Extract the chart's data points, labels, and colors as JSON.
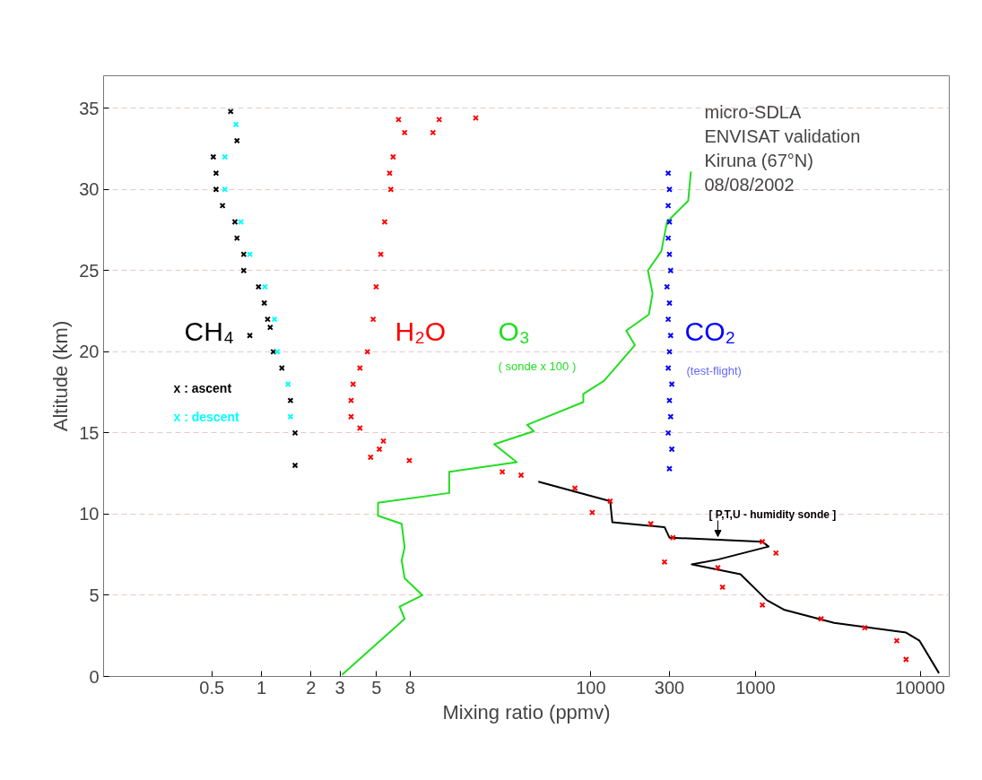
{
  "chart_data": {
    "type": "scatter",
    "xlabel": "Mixing ratio (ppmv)",
    "ylabel": "Altitude (km)",
    "log": "x",
    "xlim": [
      0.11,
      15000
    ],
    "ylim": [
      0,
      37
    ],
    "xticks": [
      0.5,
      1,
      2,
      3,
      5,
      8,
      100,
      300,
      1000,
      10000
    ],
    "yticks": [
      0,
      5,
      10,
      15,
      20,
      25,
      30,
      35
    ],
    "grid": "y",
    "marker": "cross",
    "series": [
      {
        "name": "x : ascent",
        "color": "#000000",
        "x": [
          1.6,
          1.6,
          1.5,
          1.33,
          1.18,
          0.85,
          1.13,
          1.09,
          1.04,
          0.96,
          0.78,
          0.78,
          0.71,
          0.69,
          0.58,
          0.53,
          0.53,
          0.51,
          0.71,
          0.65
        ],
        "values": [
          13,
          15,
          17,
          19,
          20,
          21,
          21.5,
          22,
          23,
          24,
          25,
          26,
          27,
          28,
          29,
          30,
          31,
          32,
          33,
          34.8
        ]
      },
      {
        "name": "x : descent",
        "color": "#00ffff",
        "x": [
          1.5,
          1.45,
          1.25,
          1.2,
          1.05,
          0.85,
          0.75,
          0.6,
          0.6,
          0.7
        ],
        "values": [
          16,
          18,
          20,
          22,
          24,
          26,
          28,
          30,
          32,
          34
        ]
      },
      {
        "name": "H₂O",
        "color": "#ff0000",
        "x": [
          6.8,
          12,
          20,
          7.4,
          11,
          6.3,
          6.0,
          6.1,
          5.6,
          5.3,
          4.97,
          4.77,
          4.4,
          3.96,
          3.6,
          3.5,
          3.5,
          3.96,
          5.5,
          5.2,
          4.6,
          7.9,
          29,
          37.7,
          80,
          131,
          102,
          231,
          315,
          1100,
          1330,
          280,
          590,
          630,
          1100,
          2500,
          4600,
          7200,
          8200
        ],
        "values": [
          34.3,
          34.3,
          34.4,
          33.5,
          33.5,
          32,
          31,
          30,
          28,
          26,
          24,
          22,
          20,
          19,
          18,
          17,
          16,
          15.3,
          14.5,
          14,
          13.5,
          13.3,
          12.6,
          12.4,
          11.6,
          10.8,
          10.1,
          9.4,
          8.55,
          8.3,
          7.6,
          7.05,
          6.7,
          5.5,
          4.4,
          3.55,
          3.0,
          2.2,
          1.05
        ]
      },
      {
        "name": "O₃",
        "color": "#22dd22",
        "type": "line",
        "marker": "none",
        "x": [
          3.08,
          7.4,
          6.9,
          9.5,
          7.4,
          7.1,
          7.4,
          7.1,
          5.1,
          5.1,
          13.8,
          13.8,
          35.5,
          25.9,
          45,
          41,
          90,
          90,
          120,
          185,
          164,
          225,
          237,
          222,
          268,
          290,
          390,
          405
        ],
        "values": [
          0.1,
          3.55,
          4.3,
          5.0,
          6.05,
          7.15,
          7.95,
          9.4,
          9.9,
          10.7,
          11.3,
          12.6,
          13.2,
          14.3,
          15.1,
          15.5,
          16.9,
          17.4,
          18.2,
          20.4,
          21.3,
          22.3,
          23.6,
          25.0,
          26.2,
          28.0,
          29.3,
          31.1
        ]
      },
      {
        "name": "CO₂",
        "color": "#0000ff",
        "x": [
          300,
          310,
          295,
          305,
          300,
          310,
          295,
          300,
          305,
          295,
          300,
          290,
          305,
          300,
          295,
          300,
          295,
          300,
          295
        ],
        "values": [
          12.8,
          14,
          15,
          16,
          17,
          18,
          19,
          20,
          21,
          22,
          23,
          24,
          25,
          26,
          27,
          28,
          29,
          30,
          31
        ]
      },
      {
        "name": "[ P,T,U - humidity sonde ]",
        "color": "#000000",
        "type": "line",
        "marker": "none",
        "x": [
          48,
          131,
          135,
          280,
          300,
          1100,
          1200,
          590,
          410,
          810,
          1170,
          1500,
          3000,
          8200,
          9900,
          13000
        ],
        "values": [
          12.0,
          10.8,
          9.5,
          9.2,
          8.55,
          8.3,
          8.0,
          7.2,
          6.9,
          6.3,
          4.7,
          4.1,
          3.3,
          2.7,
          2.2,
          0.2
        ]
      }
    ],
    "annotations": [
      "CH₄",
      "( sonde  x 100 )",
      "(test-flight)",
      "micro-SDLA",
      "ENVISAT validation",
      "Kiruna  (67°N)",
      "08/08/2002"
    ]
  }
}
